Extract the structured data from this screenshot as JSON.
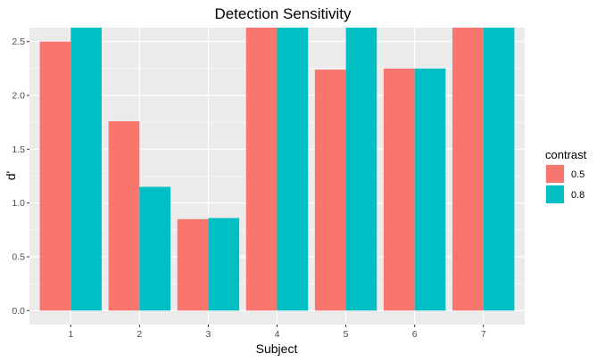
{
  "chart_data": {
    "type": "bar",
    "title": "Detection Sensitivity",
    "xlabel": "Subject",
    "ylabel": "d'",
    "categories": [
      "1",
      "2",
      "3",
      "4",
      "5",
      "6",
      "7"
    ],
    "series": [
      {
        "name": "0.5",
        "color": "#F8766D",
        "values": [
          2.5,
          1.76,
          0.85,
          2.63,
          2.24,
          2.25,
          2.63
        ]
      },
      {
        "name": "0.8",
        "color": "#00BFC4",
        "values": [
          2.63,
          1.15,
          0.86,
          2.63,
          2.63,
          2.25,
          2.63
        ]
      }
    ],
    "yticks": [
      "0.0",
      "0.5",
      "1.0",
      "1.5",
      "2.0",
      "2.5"
    ],
    "ylim": [
      -0.13,
      2.63
    ],
    "grid": true,
    "legend_title": "contrast",
    "legend_placement": "right",
    "panel_background": "#EBEBEB",
    "grid_color": "#FFFFFF"
  }
}
